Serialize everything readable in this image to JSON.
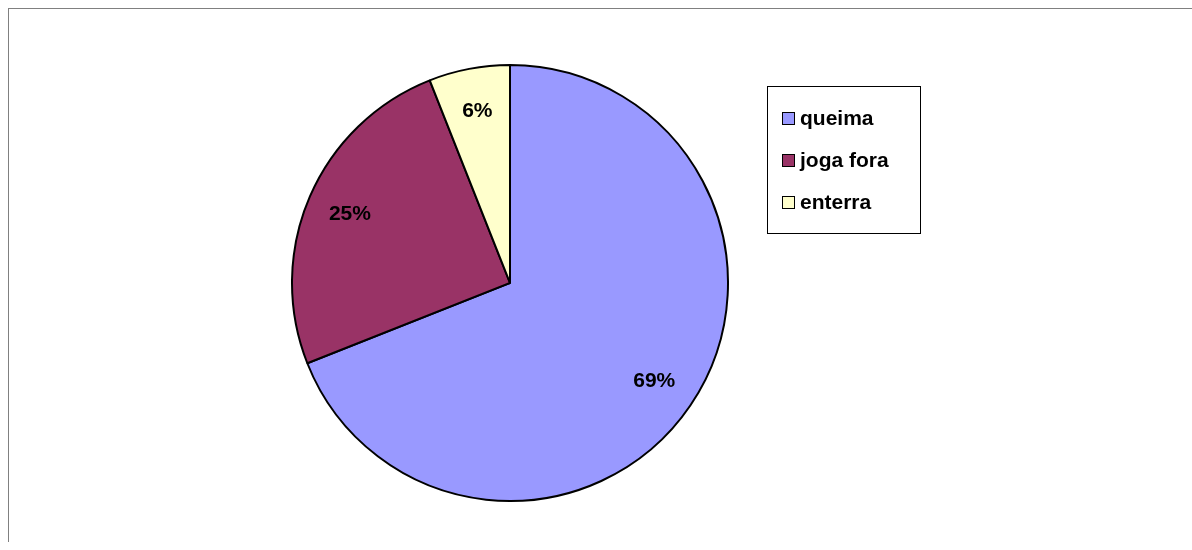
{
  "chart_data": {
    "type": "pie",
    "categories": [
      "queima",
      "joga fora",
      "enterra"
    ],
    "values": [
      69,
      25,
      6
    ],
    "colors": [
      "#9999ff",
      "#993366",
      "#ffffcc"
    ],
    "value_labels": [
      "69%",
      "25%",
      "6%"
    ],
    "legend": "right"
  }
}
